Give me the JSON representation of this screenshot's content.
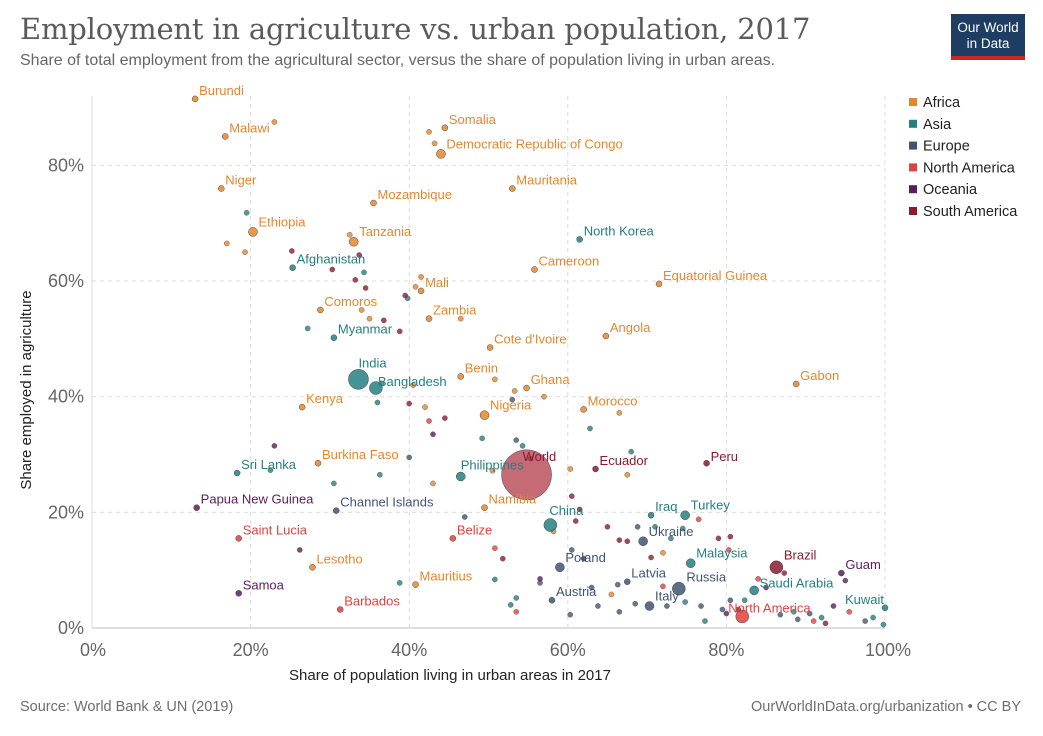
{
  "header": {
    "title": "Employment in agriculture vs. urban population, 2017",
    "subtitle": "Share of total employment from the agricultural sector, versus the share of population living in urban areas.",
    "logo_line1": "Our World",
    "logo_line2": "in Data"
  },
  "footer": {
    "source": "Source: World Bank & UN (2019)",
    "link": "OurWorldInData.org/urbanization • CC BY"
  },
  "colors": {
    "Africa": "#e6862c",
    "Asia": "#25807f",
    "Europe": "#3f5575",
    "North America": "#e2403d",
    "Oceania": "#5a1e5a",
    "South America": "#8b1a30",
    "World": "#b03a48"
  },
  "chart_data": {
    "type": "scatter",
    "title": "Employment in agriculture vs. urban population, 2017",
    "xlabel": "Share of population living in urban areas in 2017",
    "ylabel": "Share employed in agriculture",
    "xlim": [
      0,
      100
    ],
    "ylim": [
      0,
      92
    ],
    "xticks": [
      "0%",
      "20%",
      "40%",
      "60%",
      "80%",
      "100%"
    ],
    "yticks": [
      "0%",
      "20%",
      "40%",
      "60%",
      "80%"
    ],
    "grid": true,
    "legend_position": "right",
    "legend": [
      "Africa",
      "Asia",
      "Europe",
      "North America",
      "Oceania",
      "South America"
    ],
    "labeled_points": [
      {
        "name": "Burundi",
        "region": "Africa",
        "x": 13,
        "y": 91.5,
        "size": "s"
      },
      {
        "name": "Malawi",
        "region": "Africa",
        "x": 16.8,
        "y": 85,
        "size": "s"
      },
      {
        "name": "Somalia",
        "region": "Africa",
        "x": 44.5,
        "y": 86.5,
        "size": "s"
      },
      {
        "name": "Democratic Republic of Congo",
        "region": "Africa",
        "x": 44,
        "y": 82,
        "size": "m"
      },
      {
        "name": "Niger",
        "region": "Africa",
        "x": 16.3,
        "y": 76,
        "size": "s"
      },
      {
        "name": "Mozambique",
        "region": "Africa",
        "x": 35.5,
        "y": 73.5,
        "size": "s"
      },
      {
        "name": "Mauritania",
        "region": "Africa",
        "x": 53,
        "y": 76,
        "size": "s"
      },
      {
        "name": "Ethiopia",
        "region": "Africa",
        "x": 20.3,
        "y": 68.5,
        "size": "m"
      },
      {
        "name": "Tanzania",
        "region": "Africa",
        "x": 33,
        "y": 66.8,
        "size": "m"
      },
      {
        "name": "North Korea",
        "region": "Asia",
        "x": 61.5,
        "y": 67.2,
        "size": "s"
      },
      {
        "name": "Afghanistan",
        "region": "Asia",
        "x": 25.3,
        "y": 62.3,
        "size": "s"
      },
      {
        "name": "Cameroon",
        "region": "Africa",
        "x": 55.8,
        "y": 62,
        "size": "s"
      },
      {
        "name": "Equatorial Guinea",
        "region": "Africa",
        "x": 71.5,
        "y": 59.5,
        "size": "s"
      },
      {
        "name": "Mali",
        "region": "Africa",
        "x": 41.5,
        "y": 58.3,
        "size": "s"
      },
      {
        "name": "Comoros",
        "region": "Africa",
        "x": 28.8,
        "y": 55,
        "size": "s"
      },
      {
        "name": "Zambia",
        "region": "Africa",
        "x": 42.5,
        "y": 53.5,
        "size": "s"
      },
      {
        "name": "Myanmar",
        "region": "Asia",
        "x": 30.5,
        "y": 50.2,
        "size": "s"
      },
      {
        "name": "Angola",
        "region": "Africa",
        "x": 64.8,
        "y": 50.5,
        "size": "s"
      },
      {
        "name": "Cote d'Ivoire",
        "region": "Africa",
        "x": 50.2,
        "y": 48.5,
        "size": "s"
      },
      {
        "name": "India",
        "region": "Asia",
        "x": 33.6,
        "y": 43.0,
        "size": "xl"
      },
      {
        "name": "Benin",
        "region": "Africa",
        "x": 46.5,
        "y": 43.5,
        "size": "s"
      },
      {
        "name": "Bangladesh",
        "region": "Asia",
        "x": 35.8,
        "y": 41.5,
        "size": "l"
      },
      {
        "name": "Ghana",
        "region": "Africa",
        "x": 54.8,
        "y": 41.5,
        "size": "s"
      },
      {
        "name": "Gabon",
        "region": "Africa",
        "x": 88.8,
        "y": 42.2,
        "size": "s"
      },
      {
        "name": "Kenya",
        "region": "Africa",
        "x": 26.5,
        "y": 38.2,
        "size": "s"
      },
      {
        "name": "Morocco",
        "region": "Africa",
        "x": 62,
        "y": 37.8,
        "size": "s"
      },
      {
        "name": "Nigeria",
        "region": "Africa",
        "x": 49.5,
        "y": 36.8,
        "size": "m"
      },
      {
        "name": "World",
        "region": "World",
        "x": 54.8,
        "y": 26.5,
        "size": "world"
      },
      {
        "name": "Peru",
        "region": "South America",
        "x": 77.5,
        "y": 28.5,
        "size": "s"
      },
      {
        "name": "Ecuador",
        "region": "South America",
        "x": 63.5,
        "y": 27.5,
        "size": "s"
      },
      {
        "name": "Burkina Faso",
        "region": "Africa",
        "x": 28.5,
        "y": 28.5,
        "size": "s"
      },
      {
        "name": "Sri Lanka",
        "region": "Asia",
        "x": 18.3,
        "y": 26.8,
        "size": "s"
      },
      {
        "name": "Philippines",
        "region": "Asia",
        "x": 46.5,
        "y": 26.2,
        "size": "m"
      },
      {
        "name": "Papua New Guinea",
        "region": "Oceania",
        "x": 13.2,
        "y": 20.8,
        "size": "s"
      },
      {
        "name": "Channel Islands",
        "region": "Europe",
        "x": 30.8,
        "y": 20.3,
        "size": "s"
      },
      {
        "name": "Namibia",
        "region": "Africa",
        "x": 49.5,
        "y": 20.8,
        "size": "s"
      },
      {
        "name": "China",
        "region": "Asia",
        "x": 57.8,
        "y": 17.8,
        "size": "l"
      },
      {
        "name": "Iraq",
        "region": "Asia",
        "x": 70.5,
        "y": 19.5,
        "size": "s"
      },
      {
        "name": "Turkey",
        "region": "Asia",
        "x": 74.8,
        "y": 19.5,
        "size": "m"
      },
      {
        "name": "Belize",
        "region": "North America",
        "x": 45.5,
        "y": 15.5,
        "size": "s"
      },
      {
        "name": "Ukraine",
        "region": "Europe",
        "x": 69.5,
        "y": 15.0,
        "size": "m"
      },
      {
        "name": "Saint Lucia",
        "region": "North America",
        "x": 18.5,
        "y": 15.5,
        "size": "s"
      },
      {
        "name": "Lesotho",
        "region": "Africa",
        "x": 27.8,
        "y": 10.5,
        "size": "s"
      },
      {
        "name": "Poland",
        "region": "Europe",
        "x": 59,
        "y": 10.5,
        "size": "m"
      },
      {
        "name": "Malaysia",
        "region": "Asia",
        "x": 75.5,
        "y": 11.2,
        "size": "m"
      },
      {
        "name": "Brazil",
        "region": "South America",
        "x": 86.3,
        "y": 10.5,
        "size": "l"
      },
      {
        "name": "Guam",
        "region": "Oceania",
        "x": 94.5,
        "y": 9.5,
        "size": "s"
      },
      {
        "name": "Mauritius",
        "region": "Africa",
        "x": 40.8,
        "y": 7.5,
        "size": "s"
      },
      {
        "name": "Latvia",
        "region": "Europe",
        "x": 67.5,
        "y": 8.0,
        "size": "s"
      },
      {
        "name": "Russia",
        "region": "Europe",
        "x": 74,
        "y": 6.8,
        "size": "l"
      },
      {
        "name": "Saudi Arabia",
        "region": "Asia",
        "x": 83.5,
        "y": 6.5,
        "size": "m"
      },
      {
        "name": "Samoa",
        "region": "Oceania",
        "x": 18.5,
        "y": 6.0,
        "size": "s"
      },
      {
        "name": "Austria",
        "region": "Europe",
        "x": 58,
        "y": 4.8,
        "size": "s"
      },
      {
        "name": "Italy",
        "region": "Europe",
        "x": 70.3,
        "y": 3.8,
        "size": "m"
      },
      {
        "name": "Kuwait",
        "region": "Asia",
        "x": 100,
        "y": 3.5,
        "size": "s"
      },
      {
        "name": "North America",
        "region": "North America",
        "x": 82,
        "y": 2.0,
        "size": "l"
      },
      {
        "name": "Barbados",
        "region": "North America",
        "x": 31.3,
        "y": 3.2,
        "size": "s"
      }
    ],
    "unlabeled_points": [
      {
        "region": "Africa",
        "x": 23,
        "y": 87.5
      },
      {
        "region": "Africa",
        "x": 42.5,
        "y": 85.8
      },
      {
        "region": "Africa",
        "x": 43.2,
        "y": 83.8
      },
      {
        "region": "Africa",
        "x": 17,
        "y": 66.5
      },
      {
        "region": "Africa",
        "x": 19.3,
        "y": 65
      },
      {
        "region": "Africa",
        "x": 32.5,
        "y": 68
      },
      {
        "region": "Africa",
        "x": 40.8,
        "y": 59
      },
      {
        "region": "Africa",
        "x": 41.5,
        "y": 60.7
      },
      {
        "region": "Africa",
        "x": 34,
        "y": 55
      },
      {
        "region": "Africa",
        "x": 46.5,
        "y": 53.5
      },
      {
        "region": "Africa",
        "x": 35,
        "y": 53.5
      },
      {
        "region": "Africa",
        "x": 50.8,
        "y": 43
      },
      {
        "region": "Africa",
        "x": 53.3,
        "y": 41
      },
      {
        "region": "Africa",
        "x": 57,
        "y": 40
      },
      {
        "region": "Africa",
        "x": 66.5,
        "y": 37.2
      },
      {
        "region": "Africa",
        "x": 43,
        "y": 25
      },
      {
        "region": "Africa",
        "x": 60.3,
        "y": 27.5
      },
      {
        "region": "Africa",
        "x": 67.5,
        "y": 26.5
      },
      {
        "region": "Africa",
        "x": 72,
        "y": 13
      },
      {
        "region": "Africa",
        "x": 58.2,
        "y": 16.7
      },
      {
        "region": "Africa",
        "x": 65.5,
        "y": 5.8
      },
      {
        "region": "Africa",
        "x": 42,
        "y": 38.2
      },
      {
        "region": "Africa",
        "x": 40.5,
        "y": 42
      },
      {
        "region": "Africa",
        "x": 50.5,
        "y": 27.2
      },
      {
        "region": "Asia",
        "x": 19.5,
        "y": 71.8
      },
      {
        "region": "Asia",
        "x": 34.3,
        "y": 61.5
      },
      {
        "region": "Asia",
        "x": 27.2,
        "y": 51.8
      },
      {
        "region": "Asia",
        "x": 39.8,
        "y": 57
      },
      {
        "region": "Asia",
        "x": 36.5,
        "y": 42.3
      },
      {
        "region": "Asia",
        "x": 36,
        "y": 39
      },
      {
        "region": "Asia",
        "x": 36.3,
        "y": 26.5
      },
      {
        "region": "Asia",
        "x": 30.5,
        "y": 25
      },
      {
        "region": "Asia",
        "x": 49.2,
        "y": 32.8
      },
      {
        "region": "Asia",
        "x": 54.3,
        "y": 31.5
      },
      {
        "region": "Asia",
        "x": 62.8,
        "y": 34.5
      },
      {
        "region": "Asia",
        "x": 68,
        "y": 30.5
      },
      {
        "region": "Asia",
        "x": 71,
        "y": 17.5
      },
      {
        "region": "Asia",
        "x": 73,
        "y": 15.5
      },
      {
        "region": "Asia",
        "x": 74.5,
        "y": 17.2
      },
      {
        "region": "Asia",
        "x": 50.8,
        "y": 8.4
      },
      {
        "region": "Asia",
        "x": 52.8,
        "y": 4
      },
      {
        "region": "Asia",
        "x": 53.5,
        "y": 5.2
      },
      {
        "region": "Asia",
        "x": 74.8,
        "y": 4.5
      },
      {
        "region": "Asia",
        "x": 77.3,
        "y": 1.2
      },
      {
        "region": "Asia",
        "x": 82.3,
        "y": 4.8
      },
      {
        "region": "Asia",
        "x": 88.5,
        "y": 2.8
      },
      {
        "region": "Asia",
        "x": 92,
        "y": 1.8
      },
      {
        "region": "Asia",
        "x": 98.5,
        "y": 1.8
      },
      {
        "region": "Asia",
        "x": 99.8,
        "y": 0.6
      },
      {
        "region": "Asia",
        "x": 38.8,
        "y": 7.8
      },
      {
        "region": "Asia",
        "x": 22.5,
        "y": 27.3
      },
      {
        "region": "Europe",
        "x": 53,
        "y": 39.5
      },
      {
        "region": "Europe",
        "x": 68.8,
        "y": 17.5
      },
      {
        "region": "Europe",
        "x": 60.5,
        "y": 13.5
      },
      {
        "region": "Europe",
        "x": 63,
        "y": 7
      },
      {
        "region": "Europe",
        "x": 66.3,
        "y": 7.5
      },
      {
        "region": "Europe",
        "x": 68.5,
        "y": 4.2
      },
      {
        "region": "Europe",
        "x": 72.5,
        "y": 3.8
      },
      {
        "region": "Europe",
        "x": 76.8,
        "y": 3.8
      },
      {
        "region": "Europe",
        "x": 79.5,
        "y": 3.2
      },
      {
        "region": "Europe",
        "x": 80.5,
        "y": 4.8
      },
      {
        "region": "Europe",
        "x": 86.8,
        "y": 2.3
      },
      {
        "region": "Europe",
        "x": 89,
        "y": 1.5
      },
      {
        "region": "Europe",
        "x": 90.5,
        "y": 2.5
      },
      {
        "region": "Europe",
        "x": 97.5,
        "y": 1.2
      },
      {
        "region": "Europe",
        "x": 63.8,
        "y": 3.8
      },
      {
        "region": "Europe",
        "x": 66.5,
        "y": 2.8
      },
      {
        "region": "Europe",
        "x": 60.3,
        "y": 2.3
      },
      {
        "region": "Europe",
        "x": 56.5,
        "y": 7.8
      },
      {
        "region": "Europe",
        "x": 40,
        "y": 29.5
      },
      {
        "region": "Europe",
        "x": 53.5,
        "y": 32.5
      },
      {
        "region": "Europe",
        "x": 47,
        "y": 19.2
      },
      {
        "region": "North America",
        "x": 42.5,
        "y": 35.8
      },
      {
        "region": "North America",
        "x": 50.8,
        "y": 13.8
      },
      {
        "region": "North America",
        "x": 53.5,
        "y": 2.8
      },
      {
        "region": "North America",
        "x": 76.5,
        "y": 18.8
      },
      {
        "region": "North America",
        "x": 80.3,
        "y": 13.5
      },
      {
        "region": "North America",
        "x": 84,
        "y": 8.5
      },
      {
        "region": "North America",
        "x": 91,
        "y": 1.2
      },
      {
        "region": "North America",
        "x": 95.5,
        "y": 2.8
      },
      {
        "region": "North America",
        "x": 72,
        "y": 7.2
      },
      {
        "region": "Oceania",
        "x": 23,
        "y": 31.5
      },
      {
        "region": "Oceania",
        "x": 26.2,
        "y": 13.5
      },
      {
        "region": "Oceania",
        "x": 43,
        "y": 33.5
      },
      {
        "region": "Oceania",
        "x": 56.5,
        "y": 8.5
      },
      {
        "region": "Oceania",
        "x": 62,
        "y": 12
      },
      {
        "region": "Oceania",
        "x": 80,
        "y": 2.5
      },
      {
        "region": "Oceania",
        "x": 85,
        "y": 7
      },
      {
        "region": "Oceania",
        "x": 93.5,
        "y": 3.8
      },
      {
        "region": "Oceania",
        "x": 95,
        "y": 8.2
      },
      {
        "region": "South America",
        "x": 33.7,
        "y": 64.5
      },
      {
        "region": "South America",
        "x": 34.5,
        "y": 58.8
      },
      {
        "region": "South America",
        "x": 33.2,
        "y": 60.2
      },
      {
        "region": "South America",
        "x": 39.5,
        "y": 57.5
      },
      {
        "region": "South America",
        "x": 36.8,
        "y": 53.2
      },
      {
        "region": "South America",
        "x": 38.8,
        "y": 51.3
      },
      {
        "region": "South America",
        "x": 40,
        "y": 38.8
      },
      {
        "region": "South America",
        "x": 44.5,
        "y": 36.3
      },
      {
        "region": "South America",
        "x": 60.5,
        "y": 22.8
      },
      {
        "region": "South America",
        "x": 61.5,
        "y": 20.5
      },
      {
        "region": "South America",
        "x": 65,
        "y": 17.5
      },
      {
        "region": "South America",
        "x": 66.5,
        "y": 15.2
      },
      {
        "region": "South America",
        "x": 67.5,
        "y": 15
      },
      {
        "region": "South America",
        "x": 70.5,
        "y": 12.2
      },
      {
        "region": "South America",
        "x": 79,
        "y": 15.5
      },
      {
        "region": "South America",
        "x": 80.5,
        "y": 15.8
      },
      {
        "region": "South America",
        "x": 81.5,
        "y": 3.2
      },
      {
        "region": "South America",
        "x": 87.3,
        "y": 9.5
      },
      {
        "region": "South America",
        "x": 92.5,
        "y": 0.8
      },
      {
        "region": "South America",
        "x": 61,
        "y": 18.5
      },
      {
        "region": "South America",
        "x": 51.8,
        "y": 12
      },
      {
        "region": "South America",
        "x": 55.3,
        "y": 29.3
      },
      {
        "region": "South America",
        "x": 25.2,
        "y": 65.2
      },
      {
        "region": "South America",
        "x": 30.3,
        "y": 62
      }
    ]
  }
}
